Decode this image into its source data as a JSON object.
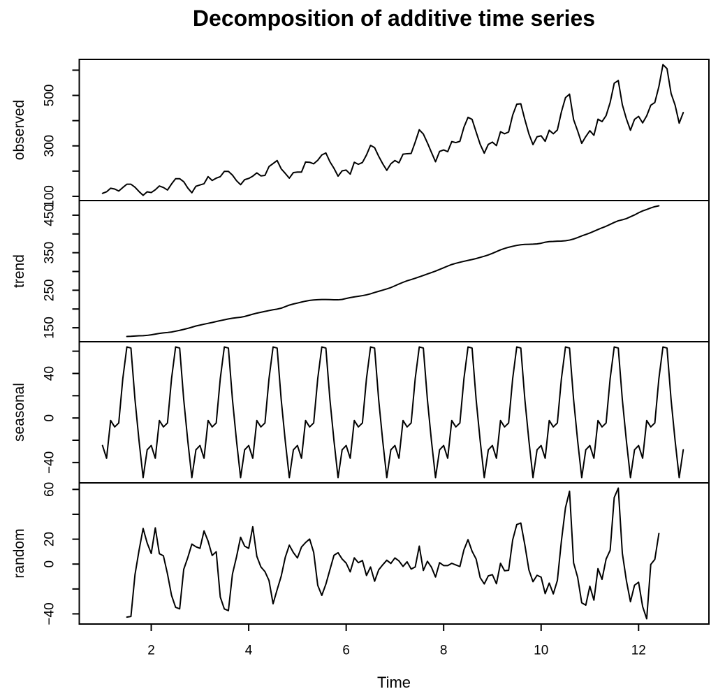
{
  "title": "Decomposition of additive time series",
  "x_axis": {
    "label": "Time",
    "tick_labels": [
      "2",
      "4",
      "6",
      "8",
      "10",
      "12"
    ]
  },
  "line_color": "#000000",
  "background_color": "#ffffff",
  "chart_data": {
    "type": "line",
    "title": "Decomposition of additive time series",
    "xlabel": "Time",
    "xlim": [
      0.5233,
      13.4433
    ],
    "x_ticks": [
      2,
      4,
      6,
      8,
      10,
      12
    ],
    "x_step": 0.0833333,
    "grid": false,
    "legend": "none",
    "panels": [
      {
        "name": "observed",
        "ylim": [
          83.28,
          642.72
        ],
        "yticks": [
          100,
          200,
          300,
          400,
          500,
          600
        ],
        "ytick_labels": [
          "100",
          "300",
          "500"
        ],
        "t_start": 1,
        "values": [
          112,
          118,
          132,
          129,
          121,
          135,
          148,
          148,
          136,
          119,
          104,
          118,
          115,
          126,
          141,
          135,
          125,
          149,
          170,
          170,
          158,
          133,
          114,
          140,
          145,
          150,
          178,
          163,
          172,
          178,
          199,
          199,
          184,
          162,
          146,
          166,
          171,
          180,
          193,
          181,
          183,
          218,
          230,
          242,
          209,
          191,
          172,
          194,
          196,
          196,
          236,
          235,
          229,
          243,
          264,
          272,
          237,
          211,
          180,
          201,
          204,
          188,
          235,
          227,
          234,
          264,
          302,
          293,
          259,
          229,
          203,
          229,
          242,
          233,
          267,
          269,
          270,
          315,
          364,
          347,
          312,
          274,
          237,
          278,
          284,
          277,
          317,
          313,
          318,
          374,
          413,
          405,
          355,
          306,
          271,
          306,
          315,
          301,
          356,
          348,
          355,
          422,
          465,
          467,
          404,
          347,
          305,
          336,
          340,
          318,
          362,
          348,
          363,
          435,
          491,
          505,
          404,
          359,
          310,
          337,
          360,
          342,
          406,
          396,
          420,
          472,
          548,
          559,
          463,
          407,
          362,
          405,
          417,
          391,
          419,
          461,
          472,
          535,
          622,
          606,
          508,
          461,
          390,
          432
        ]
      },
      {
        "name": "trend",
        "ylim": [
          112.86,
          488.97
        ],
        "yticks": [
          150,
          200,
          250,
          300,
          350,
          400,
          450
        ],
        "ytick_labels": [
          "150",
          "250",
          "350",
          "450"
        ],
        "t_start": 1.5,
        "values": [
          126.79,
          127.25,
          127.96,
          128.58,
          129.0,
          129.75,
          131.25,
          133.08,
          134.92,
          136.42,
          137.42,
          138.75,
          140.92,
          143.17,
          145.71,
          148.42,
          151.54,
          154.71,
          157.13,
          159.54,
          161.83,
          164.13,
          166.67,
          169.08,
          171.25,
          173.58,
          175.46,
          176.83,
          178.04,
          180.17,
          183.13,
          186.21,
          189.04,
          191.29,
          193.58,
          195.83,
          198.04,
          199.75,
          202.21,
          206.25,
          210.42,
          213.38,
          215.83,
          218.5,
          220.92,
          222.92,
          224.08,
          224.71,
          225.33,
          225.33,
          224.96,
          224.58,
          224.46,
          225.54,
          228.0,
          230.46,
          232.25,
          233.92,
          235.63,
          237.75,
          240.5,
          243.96,
          247.17,
          250.25,
          253.5,
          257.13,
          261.83,
          266.67,
          271.13,
          275.21,
          278.5,
          281.96,
          285.75,
          289.33,
          293.25,
          297.17,
          301.0,
          305.46,
          309.96,
          314.42,
          318.63,
          321.75,
          324.5,
          327.08,
          329.54,
          331.83,
          334.46,
          337.54,
          340.54,
          344.08,
          348.25,
          353.0,
          357.63,
          361.38,
          364.5,
          367.17,
          369.46,
          371.21,
          372.17,
          372.42,
          372.75,
          373.63,
          375.25,
          377.92,
          379.5,
          380.0,
          380.71,
          380.96,
          381.83,
          383.67,
          386.5,
          390.33,
          394.71,
          398.63,
          402.54,
          407.17,
          411.88,
          416.33,
          420.5,
          425.5,
          430.71,
          435.13,
          437.71,
          440.96,
          445.83,
          450.63,
          456.33,
          461.38,
          465.21,
          469.33,
          472.75,
          475.04
        ]
      },
      {
        "name": "seasonal",
        "ylim": [
          -58.29,
          68.53
        ],
        "yticks": [
          -40,
          -20,
          0,
          20,
          40,
          60
        ],
        "ytick_labels": [
          "-40",
          "0",
          "40"
        ],
        "t_start": 1,
        "period": 12,
        "n_points": 144,
        "figure": [
          -24.75,
          -36.19,
          -2.24,
          -8.04,
          -4.51,
          35.4,
          63.83,
          62.82,
          16.52,
          -20.64,
          -53.59,
          -28.62
        ]
      },
      {
        "name": "random",
        "ylim": [
          -48.17,
          65.25
        ],
        "yticks": [
          -40,
          -20,
          0,
          20,
          40,
          60
        ],
        "ytick_labels": [
          "-40",
          "0",
          "20",
          "60"
        ],
        "t_start": 1.5,
        "derived": "observed - trend - seasonal"
      }
    ]
  }
}
